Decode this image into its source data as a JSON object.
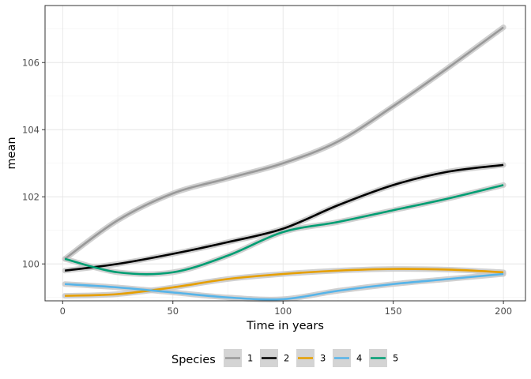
{
  "chart_data": {
    "type": "line",
    "title": "",
    "xlabel": "Time in years",
    "ylabel": "mean",
    "xlim": [
      -8,
      210
    ],
    "ylim": [
      98.9,
      107.7
    ],
    "xticks": [
      0,
      50,
      100,
      150,
      200
    ],
    "yticks": [
      100,
      102,
      104,
      106
    ],
    "grid": true,
    "legend": {
      "title": "Species",
      "position": "bottom"
    },
    "ribbon_color": "#c8c8c8",
    "series": [
      {
        "name": "1",
        "color": "#999999",
        "x": [
          1,
          25,
          50,
          75,
          100,
          125,
          150,
          175,
          200
        ],
        "y": [
          100.15,
          101.3,
          102.1,
          102.55,
          103.0,
          103.65,
          104.7,
          105.85,
          107.05
        ]
      },
      {
        "name": "2",
        "color": "#000000",
        "x": [
          1,
          25,
          50,
          75,
          100,
          125,
          150,
          175,
          200
        ],
        "y": [
          99.8,
          100.0,
          100.3,
          100.65,
          101.05,
          101.75,
          102.35,
          102.75,
          102.95
        ]
      },
      {
        "name": "3",
        "color": "#E69F00",
        "x": [
          1,
          25,
          50,
          75,
          100,
          125,
          150,
          175,
          200
        ],
        "y": [
          99.05,
          99.1,
          99.3,
          99.55,
          99.7,
          99.8,
          99.85,
          99.83,
          99.75
        ]
      },
      {
        "name": "4",
        "color": "#56B4E9",
        "x": [
          1,
          25,
          50,
          75,
          100,
          125,
          150,
          175,
          200
        ],
        "y": [
          99.4,
          99.3,
          99.15,
          99.0,
          98.95,
          99.2,
          99.4,
          99.55,
          99.7
        ]
      },
      {
        "name": "5",
        "color": "#009E73",
        "x": [
          1,
          25,
          50,
          75,
          100,
          125,
          150,
          175,
          200
        ],
        "y": [
          100.15,
          99.75,
          99.75,
          100.25,
          100.95,
          101.25,
          101.6,
          101.95,
          102.35
        ]
      }
    ]
  }
}
